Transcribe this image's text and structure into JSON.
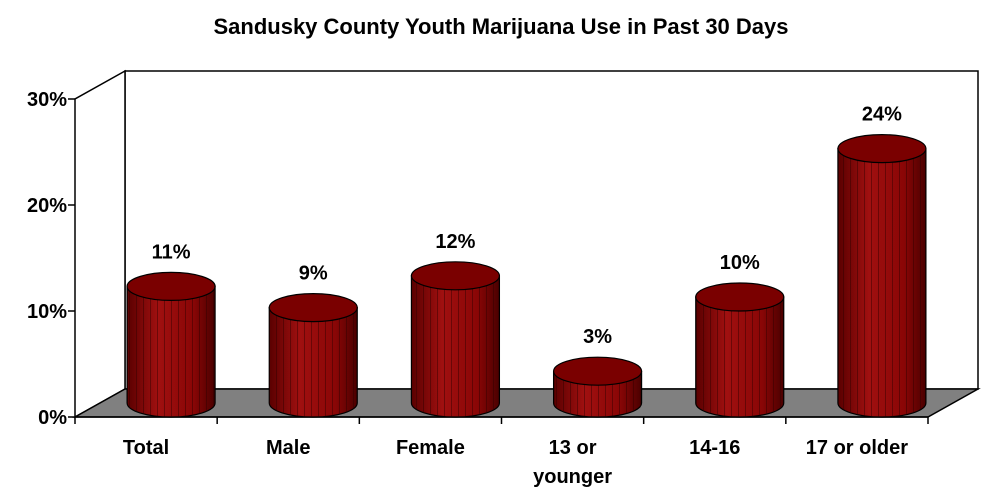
{
  "chart_data": {
    "type": "bar",
    "title": "Sandusky County Youth Marijuana Use in Past 30 Days",
    "categories": [
      "Total",
      "Male",
      "Female",
      "13 or younger",
      "14-16",
      "17 or older"
    ],
    "category_lines": [
      [
        "Total"
      ],
      [
        "Male"
      ],
      [
        "Female"
      ],
      [
        "13 or",
        "younger"
      ],
      [
        "14-16"
      ],
      [
        "17 or older"
      ]
    ],
    "values": [
      11,
      9,
      12,
      3,
      10,
      24
    ],
    "data_labels": [
      "11%",
      "9%",
      "12%",
      "3%",
      "10%",
      "24%"
    ],
    "yticks": [
      "0%",
      "10%",
      "20%",
      "30%"
    ],
    "ylim": [
      0,
      30
    ],
    "xlabel": "",
    "ylabel": "",
    "bar_style": "3d-cylinder",
    "bar_color": "#8b0000",
    "floor_color": "#808080",
    "grid": false,
    "legend": "none"
  }
}
